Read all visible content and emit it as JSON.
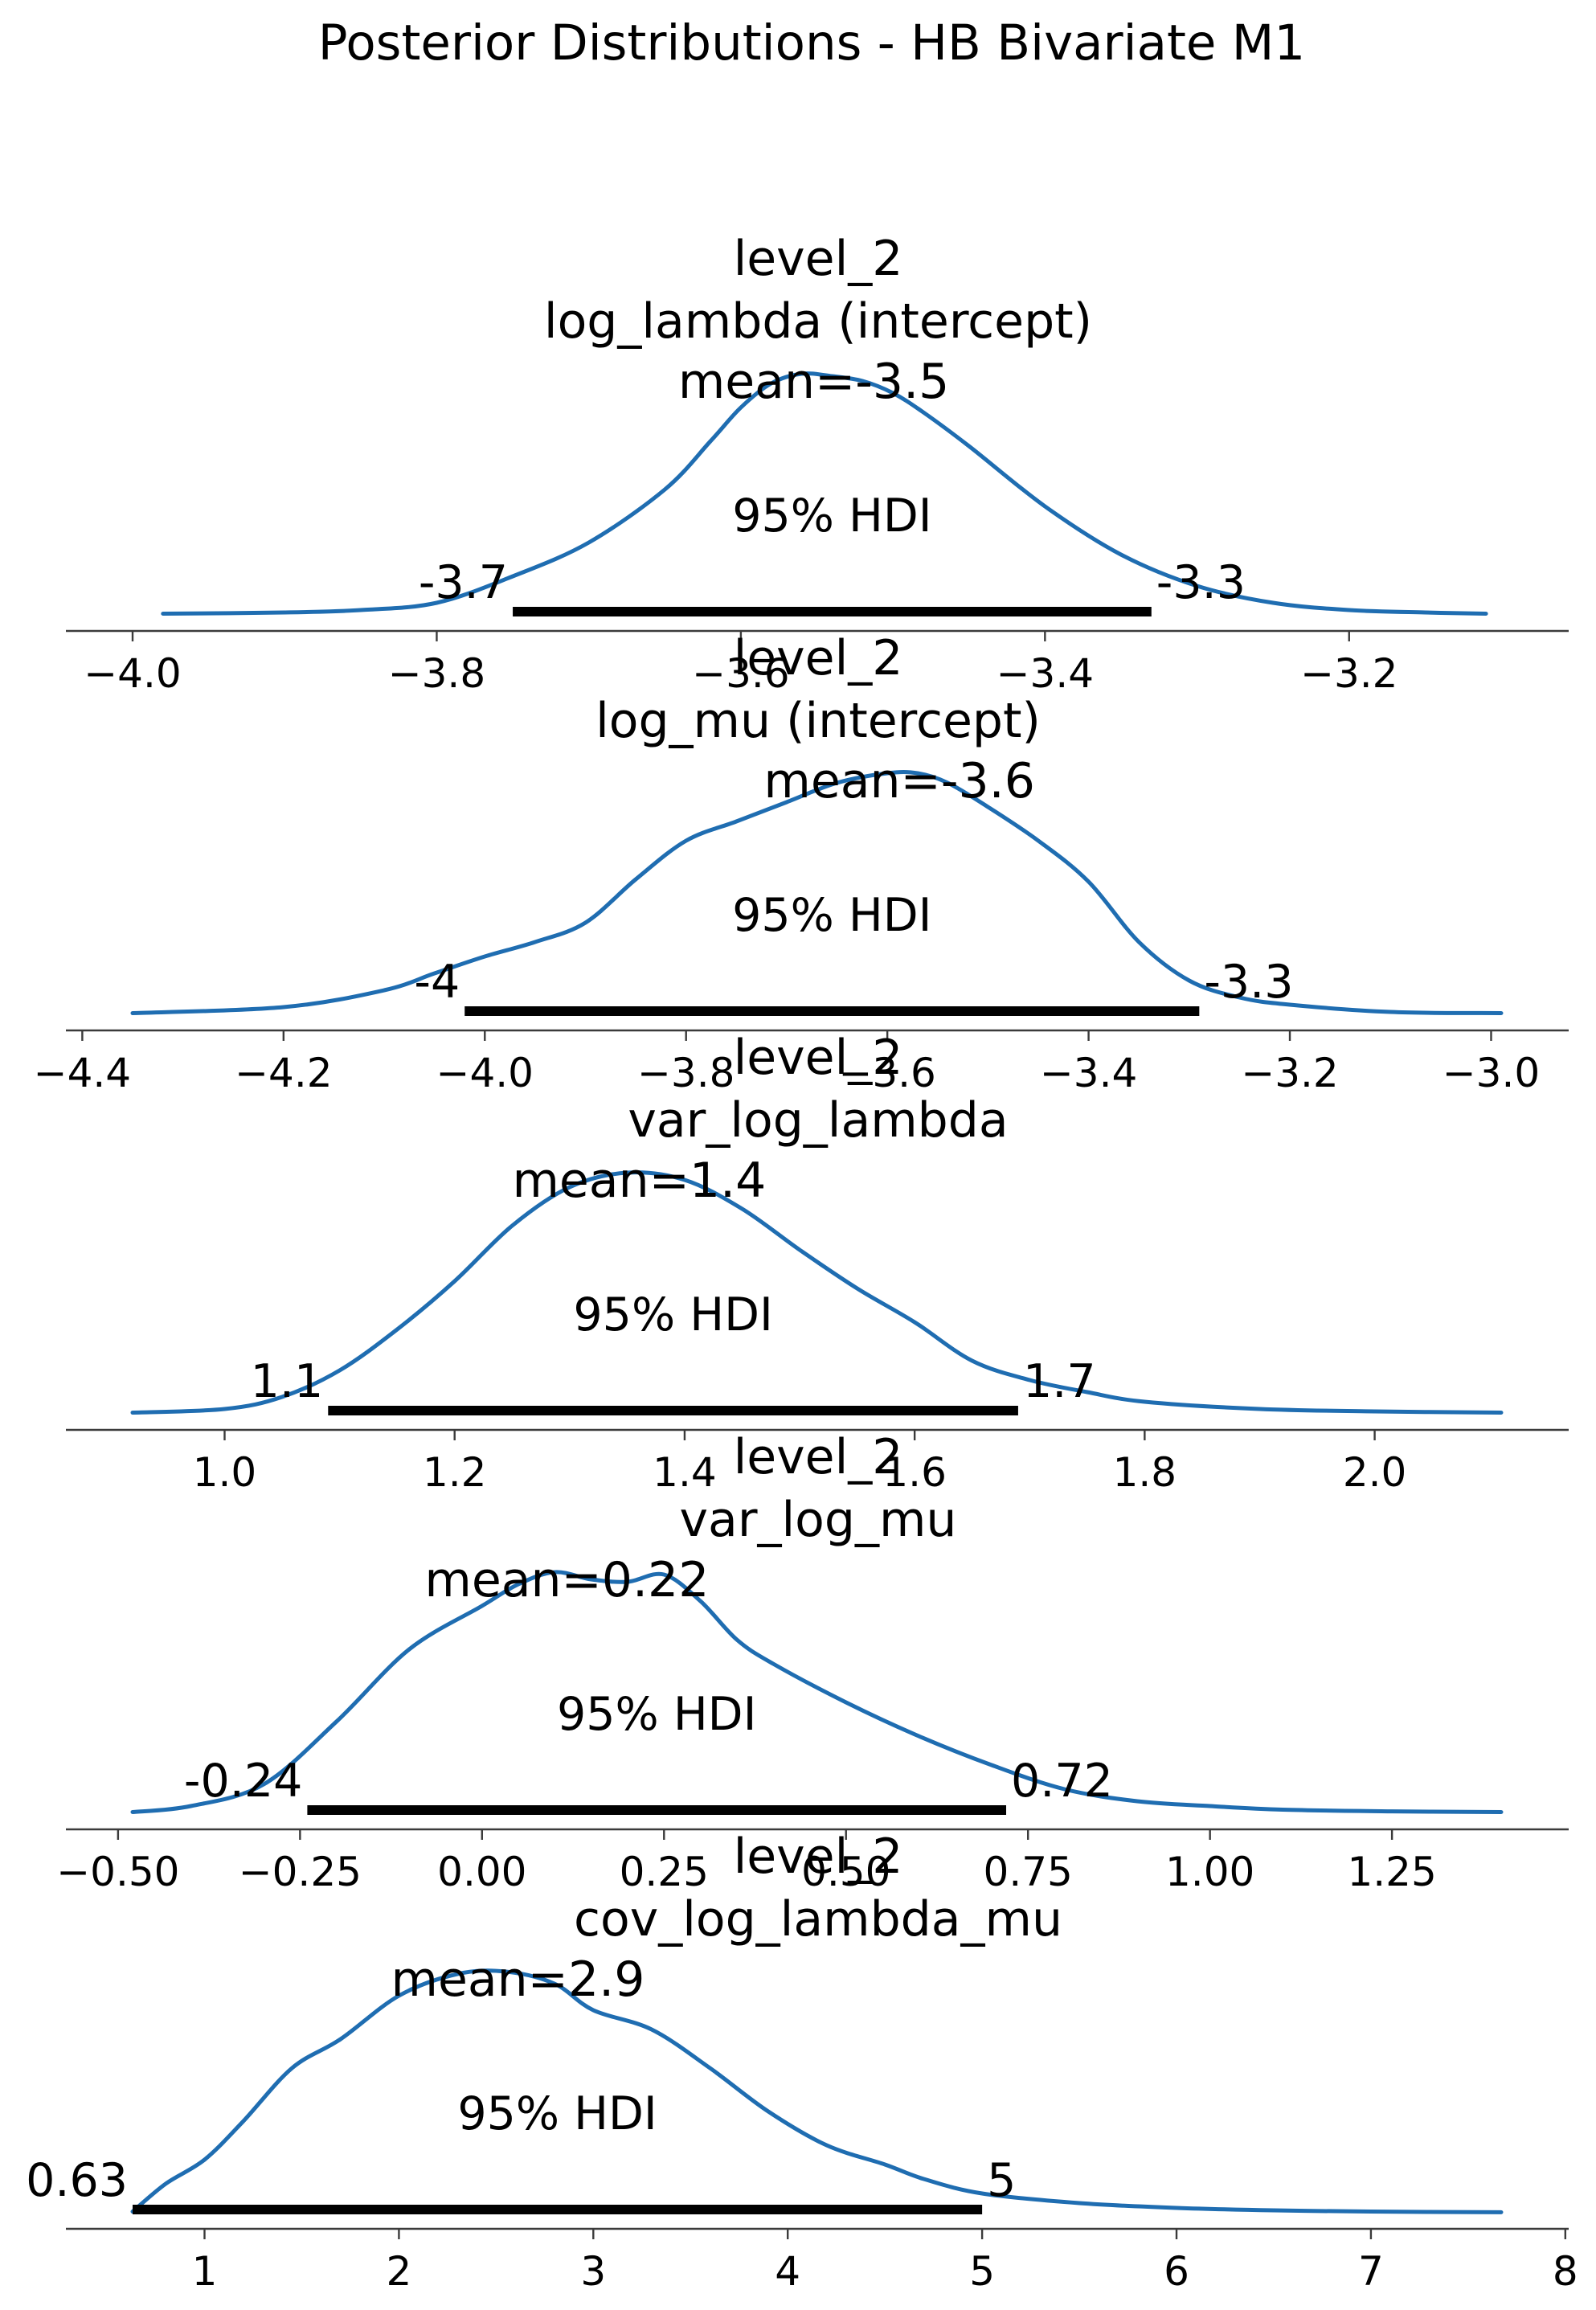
{
  "figure": {
    "title": "Posterior Distributions - HB Bivariate M1"
  },
  "colors": {
    "kde": "#1f6db1",
    "hdi": "#000000",
    "axis": "#3b3b3b"
  },
  "chart_data": [
    {
      "type": "area",
      "title": [
        "level_2",
        "log_lambda (intercept)"
      ],
      "mean_label": "mean=-3.5",
      "hdi_label": "95% HDI",
      "hdi": [
        -3.75,
        -3.33
      ],
      "hdi_labels": [
        "-3.7",
        "-3.3"
      ],
      "xlim": [
        -4.0,
        -3.1
      ],
      "ticks": [
        -4.0,
        -3.8,
        -3.6,
        -3.4,
        -3.2
      ],
      "tick_labels": [
        "−4.0",
        "−3.8",
        "−3.6",
        "−3.4",
        "−3.2"
      ],
      "density": {
        "x": [
          -3.98,
          -3.9,
          -3.85,
          -3.8,
          -3.75,
          -3.7,
          -3.65,
          -3.62,
          -3.6,
          -3.58,
          -3.56,
          -3.54,
          -3.52,
          -3.5,
          -3.48,
          -3.45,
          -3.4,
          -3.35,
          -3.3,
          -3.25,
          -3.2,
          -3.15,
          -3.11
        ],
        "y": [
          0.005,
          0.01,
          0.02,
          0.05,
          0.16,
          0.3,
          0.52,
          0.72,
          0.86,
          0.96,
          1.0,
          0.99,
          0.97,
          0.92,
          0.84,
          0.7,
          0.45,
          0.25,
          0.12,
          0.05,
          0.02,
          0.01,
          0.005
        ]
      }
    },
    {
      "type": "area",
      "title": [
        "level_2",
        "log_mu (intercept)"
      ],
      "mean_label": "mean=-3.6",
      "hdi_label": "95% HDI",
      "hdi": [
        -4.02,
        -3.29
      ],
      "hdi_labels": [
        "-4",
        "-3.3"
      ],
      "xlim": [
        -4.35,
        -2.99
      ],
      "ticks": [
        -4.4,
        -4.2,
        -4.0,
        -3.8,
        -3.6,
        -3.4,
        -3.2,
        -3.0
      ],
      "tick_labels": [
        "−4.4",
        "−4.2",
        "−4.0",
        "−3.8",
        "−3.6",
        "−3.4",
        "−3.2",
        "−3.0"
      ],
      "density": {
        "x": [
          -4.35,
          -4.2,
          -4.1,
          -4.05,
          -4.0,
          -3.95,
          -3.9,
          -3.85,
          -3.8,
          -3.75,
          -3.7,
          -3.65,
          -3.6,
          -3.57,
          -3.54,
          -3.5,
          -3.45,
          -3.4,
          -3.35,
          -3.3,
          -3.25,
          -3.2,
          -3.1,
          -2.99
        ],
        "y": [
          0.005,
          0.03,
          0.1,
          0.17,
          0.24,
          0.3,
          0.38,
          0.56,
          0.72,
          0.8,
          0.88,
          0.96,
          1.0,
          1.0,
          0.96,
          0.86,
          0.72,
          0.55,
          0.3,
          0.14,
          0.07,
          0.04,
          0.01,
          0.005
        ]
      }
    },
    {
      "type": "area",
      "title": [
        "level_2",
        "var_log_lambda"
      ],
      "mean_label": "mean=1.4",
      "hdi_label": "95% HDI",
      "hdi": [
        1.09,
        1.69
      ],
      "hdi_labels": [
        "1.1",
        "1.7"
      ],
      "xlim": [
        0.92,
        2.11
      ],
      "ticks": [
        1.0,
        1.2,
        1.4,
        1.6,
        1.8,
        2.0
      ],
      "tick_labels": [
        "1.0",
        "1.2",
        "1.4",
        "1.6",
        "1.8",
        "2.0"
      ],
      "density": {
        "x": [
          0.92,
          1.0,
          1.05,
          1.1,
          1.15,
          1.2,
          1.25,
          1.3,
          1.35,
          1.4,
          1.45,
          1.5,
          1.55,
          1.6,
          1.65,
          1.7,
          1.75,
          1.8,
          1.9,
          2.0,
          2.11
        ],
        "y": [
          0.005,
          0.02,
          0.07,
          0.18,
          0.35,
          0.55,
          0.78,
          0.94,
          1.0,
          0.97,
          0.85,
          0.68,
          0.52,
          0.38,
          0.22,
          0.14,
          0.09,
          0.05,
          0.02,
          0.01,
          0.005
        ]
      }
    },
    {
      "type": "area",
      "title": [
        "level_2",
        "var_log_mu"
      ],
      "mean_label": "mean=0.22",
      "hdi_label": "95% HDI",
      "hdi": [
        -0.24,
        0.72
      ],
      "hdi_labels": [
        "-0.24",
        "0.72"
      ],
      "xlim": [
        -0.48,
        1.4
      ],
      "ticks": [
        -0.5,
        -0.25,
        0.0,
        0.25,
        0.5,
        0.75,
        1.0,
        1.25
      ],
      "tick_labels": [
        "−0.50",
        "−0.25",
        "0.00",
        "0.25",
        "0.50",
        "0.75",
        "1.00",
        "1.25"
      ],
      "density": {
        "x": [
          -0.48,
          -0.4,
          -0.3,
          -0.2,
          -0.1,
          0.0,
          0.05,
          0.1,
          0.15,
          0.2,
          0.25,
          0.3,
          0.35,
          0.4,
          0.5,
          0.6,
          0.7,
          0.8,
          0.9,
          1.0,
          1.1,
          1.25,
          1.4
        ],
        "y": [
          0.005,
          0.03,
          0.12,
          0.38,
          0.68,
          0.86,
          0.95,
          1.0,
          0.97,
          0.96,
          0.99,
          0.88,
          0.72,
          0.62,
          0.46,
          0.32,
          0.2,
          0.1,
          0.05,
          0.03,
          0.015,
          0.008,
          0.005
        ]
      }
    },
    {
      "type": "area",
      "title": [
        "level_2",
        "cov_log_lambda_mu"
      ],
      "mean_label": "mean=2.9",
      "hdi_label": "95% HDI",
      "hdi": [
        0.63,
        5.0
      ],
      "hdi_labels": [
        "0.63",
        "5"
      ],
      "xlim": [
        0.63,
        7.67
      ],
      "ticks": [
        1,
        2,
        3,
        4,
        5,
        6,
        7,
        8
      ],
      "tick_labels": [
        "1",
        "2",
        "3",
        "4",
        "5",
        "6",
        "7",
        "8"
      ],
      "density": {
        "x": [
          0.63,
          0.8,
          1.0,
          1.2,
          1.45,
          1.7,
          2.0,
          2.3,
          2.55,
          2.8,
          3.0,
          3.3,
          3.6,
          3.9,
          4.2,
          4.5,
          4.7,
          5.0,
          5.5,
          6.0,
          6.5,
          7.0,
          7.67
        ],
        "y": [
          0.005,
          0.12,
          0.22,
          0.38,
          0.6,
          0.72,
          0.9,
          0.99,
          1.0,
          0.95,
          0.84,
          0.76,
          0.6,
          0.42,
          0.28,
          0.2,
          0.14,
          0.08,
          0.04,
          0.02,
          0.01,
          0.005,
          0.002
        ]
      }
    }
  ]
}
